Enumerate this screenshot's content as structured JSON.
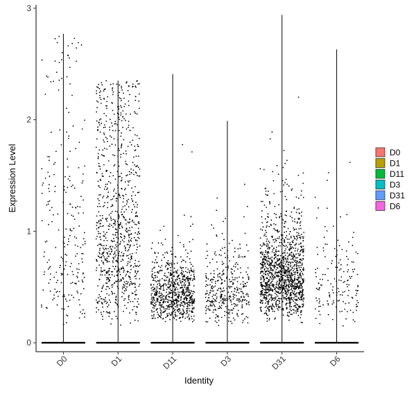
{
  "chart_data": {
    "type": "violin-jitter",
    "title": "",
    "xlabel": "Identity",
    "ylabel": "Expression Level",
    "ylim": [
      -0.08,
      3.03
    ],
    "y_ticks": [
      0,
      1,
      2,
      3
    ],
    "grid": false,
    "legend_position": "right",
    "categories": [
      "D0",
      "D1",
      "D11",
      "D3",
      "D31",
      "D6"
    ],
    "series": [
      {
        "name": "D0",
        "color": "#F8766D",
        "max": 2.77,
        "nonzero_count": 240,
        "median_nonzero": 1.0,
        "spread_nonzero": 0.7,
        "zero_band": true
      },
      {
        "name": "D1",
        "color": "#B79F00",
        "max": 2.35,
        "nonzero_count": 900,
        "median_nonzero": 0.95,
        "spread_nonzero": 0.6,
        "zero_band": true
      },
      {
        "name": "D11",
        "color": "#00BA38",
        "max": 2.41,
        "nonzero_count": 750,
        "median_nonzero": 0.45,
        "spread_nonzero": 0.35,
        "zero_band": true
      },
      {
        "name": "D3",
        "color": "#00BFC4",
        "max": 1.99,
        "nonzero_count": 380,
        "median_nonzero": 0.45,
        "spread_nonzero": 0.4,
        "zero_band": true
      },
      {
        "name": "D31",
        "color": "#619CFF",
        "max": 2.94,
        "nonzero_count": 1300,
        "median_nonzero": 0.6,
        "spread_nonzero": 0.4,
        "zero_band": true
      },
      {
        "name": "D6",
        "color": "#F564E3",
        "max": 2.63,
        "nonzero_count": 160,
        "median_nonzero": 0.55,
        "spread_nonzero": 0.45,
        "zero_band": true
      }
    ]
  }
}
